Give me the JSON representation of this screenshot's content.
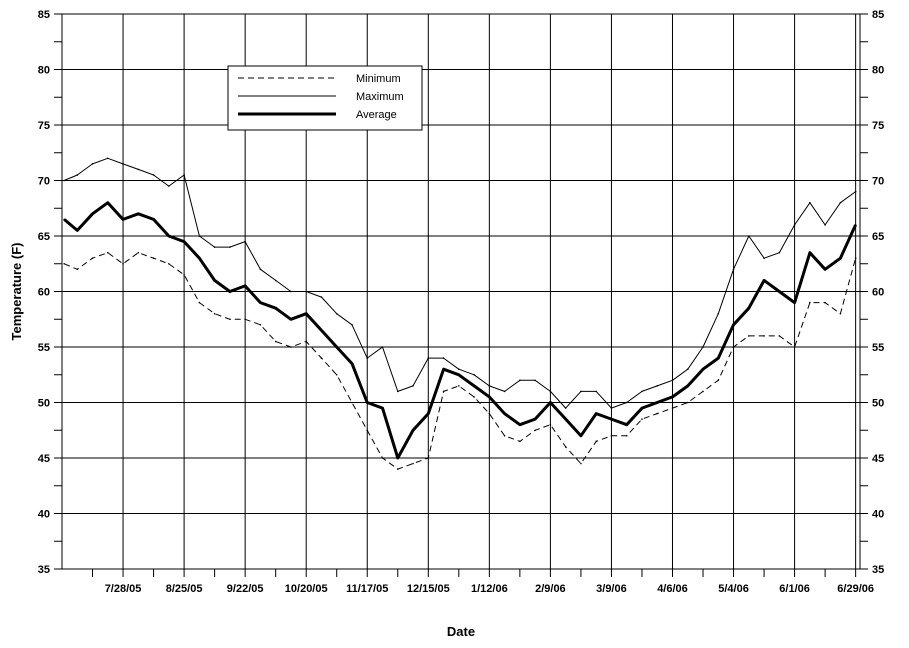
{
  "chart_data": {
    "type": "line",
    "title": "",
    "xlabel": "Date",
    "ylabel": "Temperature (F)",
    "ylim": [
      35,
      85
    ],
    "yticks": [
      35,
      40,
      45,
      50,
      55,
      60,
      65,
      70,
      75,
      80,
      85
    ],
    "xlim": [
      "2005-06-30",
      "2006-07-01"
    ],
    "x_tick_labels": [
      "7/28/05",
      "8/25/05",
      "9/22/05",
      "10/20/05",
      "11/17/05",
      "12/15/05",
      "1/12/06",
      "2/9/06",
      "3/9/06",
      "4/6/06",
      "5/4/06",
      "6/1/06",
      "6/29/06"
    ],
    "x_tick_dates": [
      "2005-07-28",
      "2005-08-25",
      "2005-09-22",
      "2005-10-20",
      "2005-11-17",
      "2005-12-15",
      "2006-01-12",
      "2006-02-09",
      "2006-03-09",
      "2006-04-06",
      "2006-05-04",
      "2006-06-01",
      "2006-06-29"
    ],
    "grid": true,
    "right_axis_mirrored": true,
    "legend_position": "top-left",
    "series": [
      {
        "name": "Minimum",
        "style": "dashed",
        "x": [
          "2005-07-01",
          "2005-07-07",
          "2005-07-14",
          "2005-07-21",
          "2005-07-28",
          "2005-08-04",
          "2005-08-11",
          "2005-08-18",
          "2005-08-25",
          "2005-09-01",
          "2005-09-08",
          "2005-09-15",
          "2005-09-22",
          "2005-09-29",
          "2005-10-06",
          "2005-10-13",
          "2005-10-20",
          "2005-10-27",
          "2005-11-03",
          "2005-11-10",
          "2005-11-17",
          "2005-11-24",
          "2005-12-01",
          "2005-12-08",
          "2005-12-15",
          "2005-12-22",
          "2005-12-29",
          "2006-01-05",
          "2006-01-12",
          "2006-01-19",
          "2006-01-26",
          "2006-02-02",
          "2006-02-09",
          "2006-02-16",
          "2006-02-23",
          "2006-03-02",
          "2006-03-09",
          "2006-03-16",
          "2006-03-23",
          "2006-03-30",
          "2006-04-06",
          "2006-04-13",
          "2006-04-20",
          "2006-04-27",
          "2006-05-04",
          "2006-05-11",
          "2006-05-18",
          "2006-05-25",
          "2006-06-01",
          "2006-06-08",
          "2006-06-15",
          "2006-06-22",
          "2006-06-29"
        ],
        "values": [
          62.5,
          62,
          63,
          63.5,
          62.5,
          63.5,
          63,
          62.5,
          61.5,
          59,
          58,
          57.5,
          57.5,
          57,
          55.5,
          55,
          55.5,
          54,
          52.5,
          50,
          47.5,
          45,
          44,
          44.5,
          45,
          51,
          51.5,
          50.5,
          49,
          47,
          46.5,
          47.5,
          48,
          46,
          44.5,
          46.5,
          47,
          47,
          48.5,
          49,
          49.5,
          50,
          51,
          52,
          55,
          56,
          56,
          56,
          55,
          59,
          59,
          58,
          63
        ]
      },
      {
        "name": "Maximum",
        "style": "thin",
        "x": [
          "2005-07-01",
          "2005-07-07",
          "2005-07-14",
          "2005-07-21",
          "2005-07-28",
          "2005-08-04",
          "2005-08-11",
          "2005-08-18",
          "2005-08-25",
          "2005-09-01",
          "2005-09-08",
          "2005-09-15",
          "2005-09-22",
          "2005-09-29",
          "2005-10-06",
          "2005-10-13",
          "2005-10-20",
          "2005-10-27",
          "2005-11-03",
          "2005-11-10",
          "2005-11-17",
          "2005-11-24",
          "2005-12-01",
          "2005-12-08",
          "2005-12-15",
          "2005-12-22",
          "2005-12-29",
          "2006-01-05",
          "2006-01-12",
          "2006-01-19",
          "2006-01-26",
          "2006-02-02",
          "2006-02-09",
          "2006-02-16",
          "2006-02-23",
          "2006-03-02",
          "2006-03-09",
          "2006-03-16",
          "2006-03-23",
          "2006-03-30",
          "2006-04-06",
          "2006-04-13",
          "2006-04-20",
          "2006-04-27",
          "2006-05-04",
          "2006-05-11",
          "2006-05-18",
          "2006-05-25",
          "2006-06-01",
          "2006-06-08",
          "2006-06-15",
          "2006-06-22",
          "2006-06-29"
        ],
        "values": [
          70,
          70.5,
          71.5,
          72,
          71.5,
          71,
          70.5,
          69.5,
          70.5,
          65,
          64,
          64,
          64.5,
          62,
          61,
          60,
          60,
          59.5,
          58,
          57,
          54,
          55,
          51,
          51.5,
          54,
          54,
          53,
          52.5,
          51.5,
          51,
          52,
          52,
          51,
          49.5,
          51,
          51,
          49.5,
          50,
          51,
          51.5,
          52,
          53,
          55,
          58,
          62,
          65,
          63,
          63.5,
          66,
          68,
          66,
          68,
          69
        ]
      },
      {
        "name": "Average",
        "style": "thick",
        "x": [
          "2005-07-01",
          "2005-07-07",
          "2005-07-14",
          "2005-07-21",
          "2005-07-28",
          "2005-08-04",
          "2005-08-11",
          "2005-08-18",
          "2005-08-25",
          "2005-09-01",
          "2005-09-08",
          "2005-09-15",
          "2005-09-22",
          "2005-09-29",
          "2005-10-06",
          "2005-10-13",
          "2005-10-20",
          "2005-10-27",
          "2005-11-03",
          "2005-11-10",
          "2005-11-17",
          "2005-11-24",
          "2005-12-01",
          "2005-12-08",
          "2005-12-15",
          "2005-12-22",
          "2005-12-29",
          "2006-01-05",
          "2006-01-12",
          "2006-01-19",
          "2006-01-26",
          "2006-02-02",
          "2006-02-09",
          "2006-02-16",
          "2006-02-23",
          "2006-03-02",
          "2006-03-09",
          "2006-03-16",
          "2006-03-23",
          "2006-03-30",
          "2006-04-06",
          "2006-04-13",
          "2006-04-20",
          "2006-04-27",
          "2006-05-04",
          "2006-05-11",
          "2006-05-18",
          "2006-05-25",
          "2006-06-01",
          "2006-06-08",
          "2006-06-15",
          "2006-06-22",
          "2006-06-29"
        ],
        "values": [
          66.5,
          65.5,
          67,
          68,
          66.5,
          67,
          66.5,
          65,
          64.5,
          63,
          61,
          60,
          60.5,
          59,
          58.5,
          57.5,
          58,
          56.5,
          55,
          53.5,
          50,
          49.5,
          45,
          47.5,
          49,
          53,
          52.5,
          51.5,
          50.5,
          49,
          48,
          48.5,
          50,
          48.5,
          47,
          49,
          48.5,
          48,
          49.5,
          50,
          50.5,
          51.5,
          53,
          54,
          57,
          58.5,
          61,
          60,
          59,
          63.5,
          62,
          63,
          66
        ]
      }
    ]
  }
}
